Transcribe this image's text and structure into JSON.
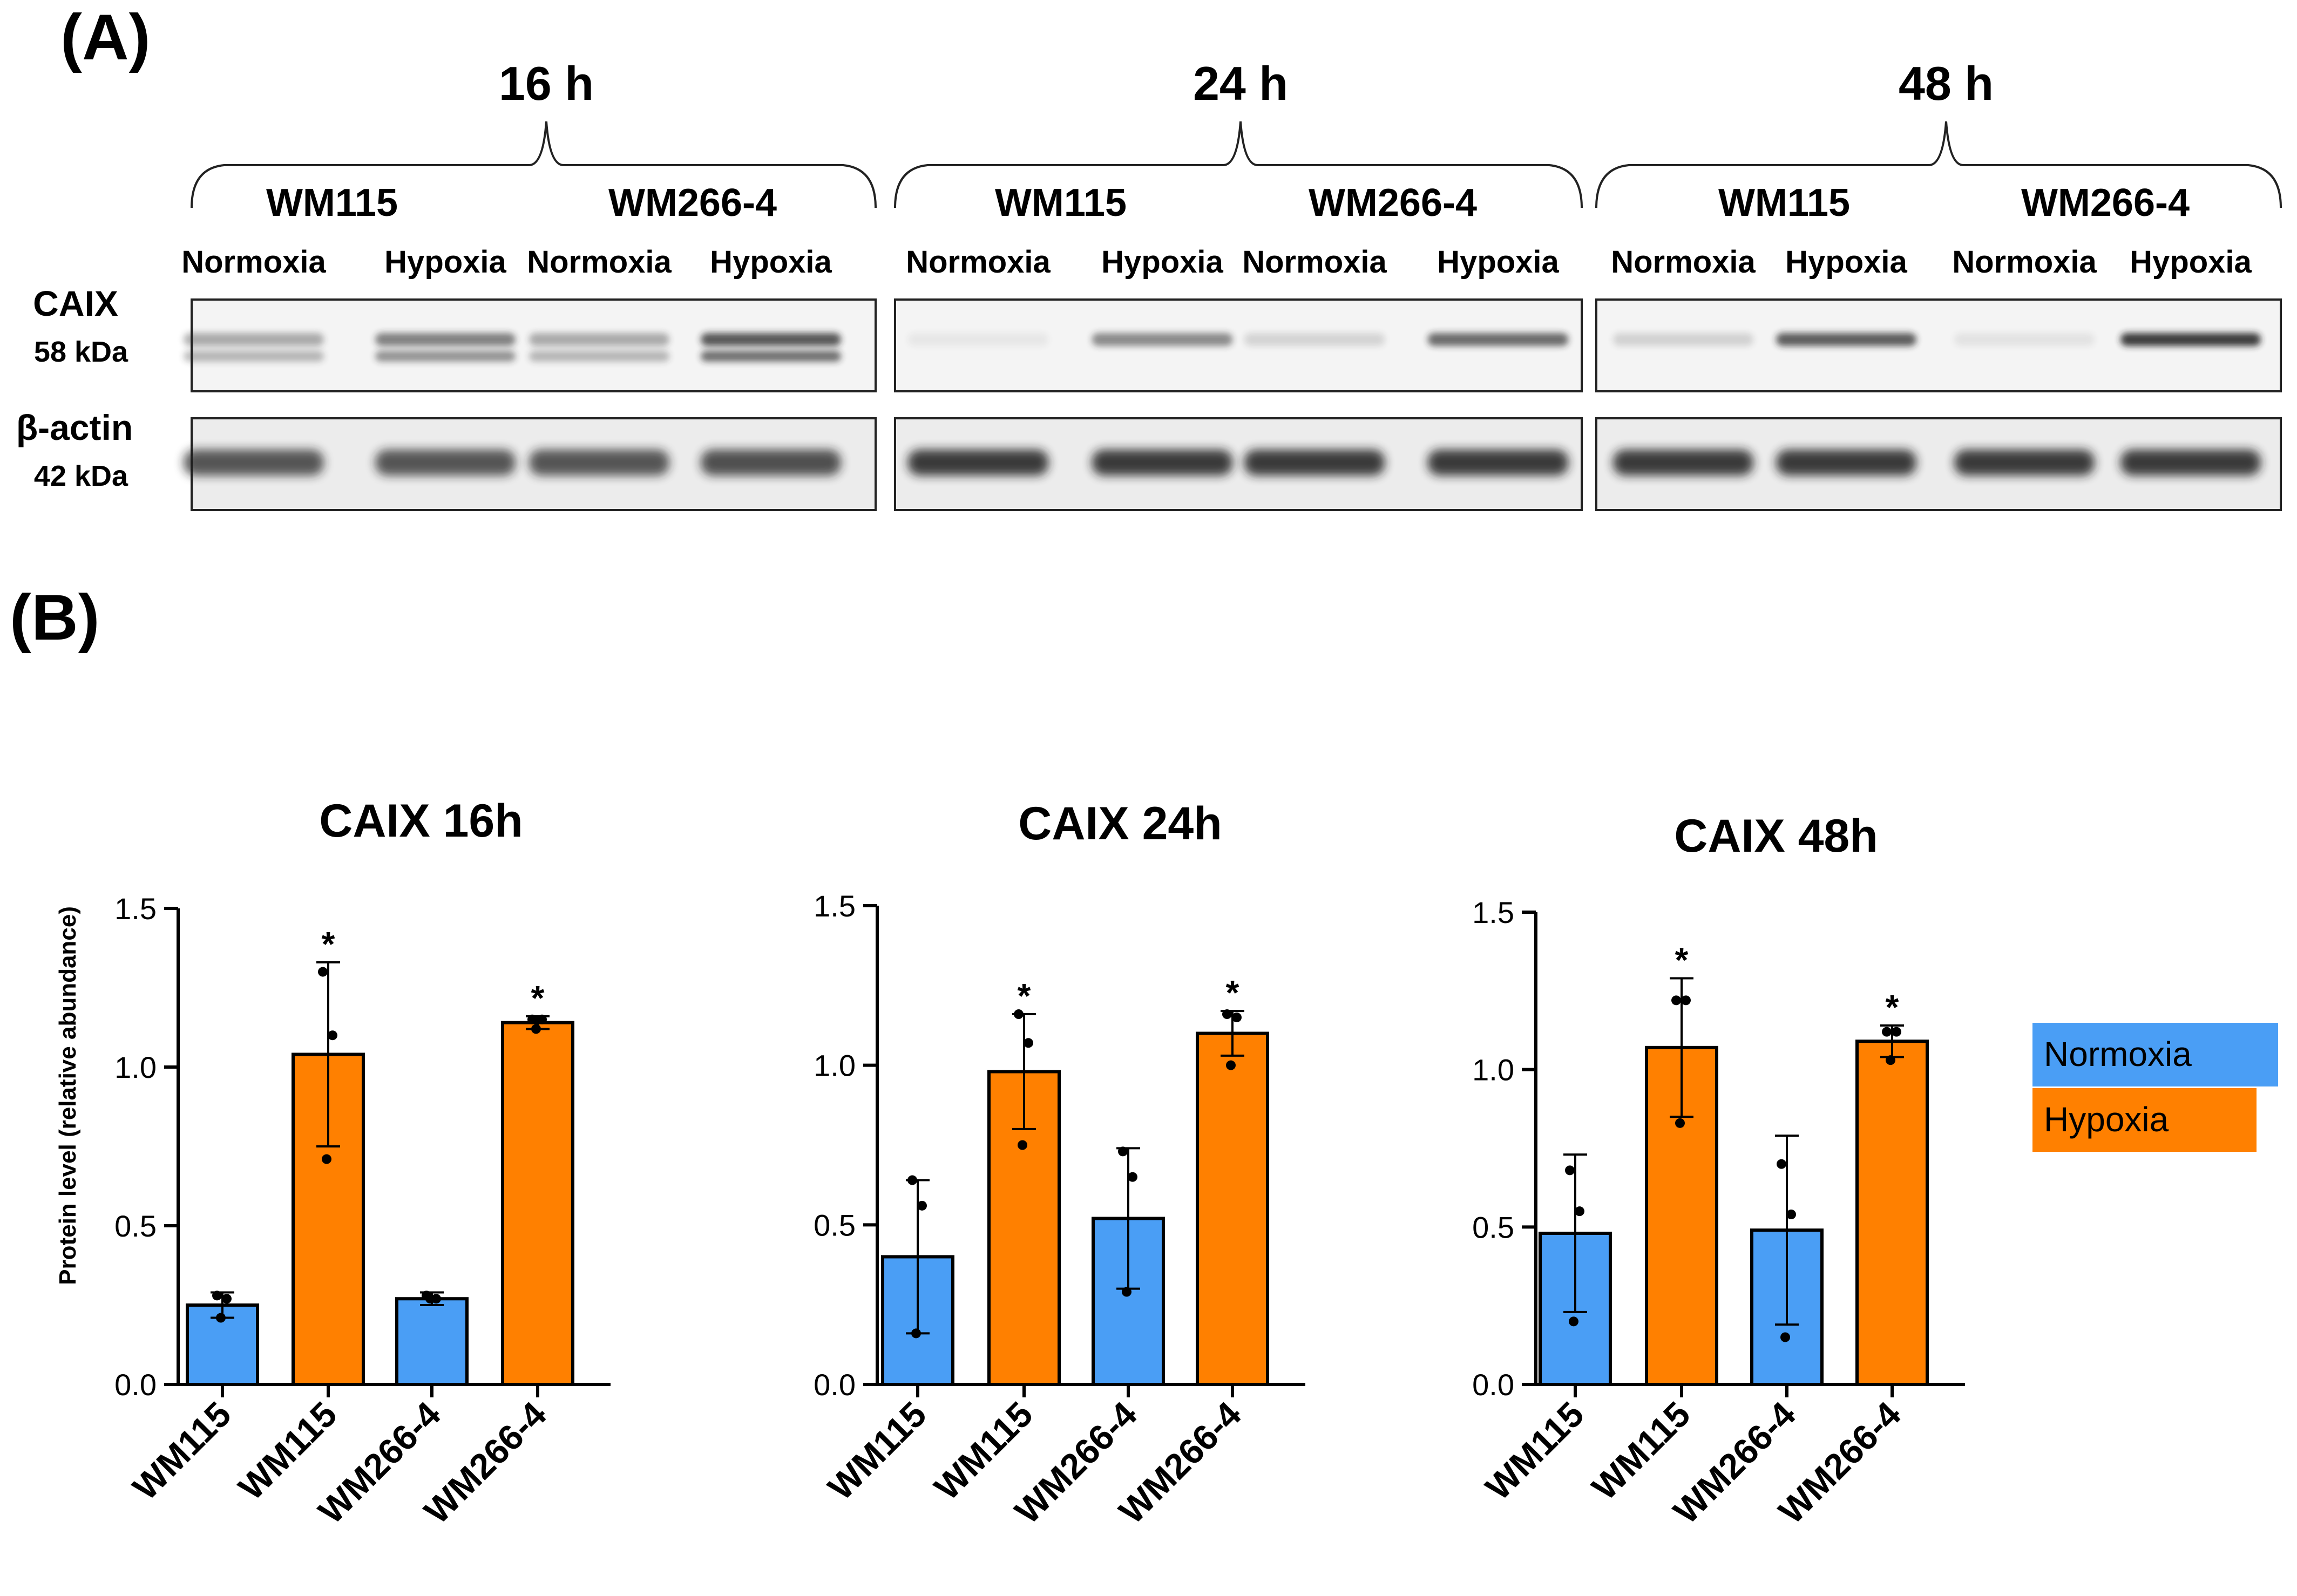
{
  "panel_a": {
    "label": "(A)",
    "groups": [
      {
        "time": "16 h",
        "cell_lines": [
          "WM115",
          "WM266-4"
        ],
        "conditions": [
          "Normoxia",
          "Hypoxia",
          "Normoxia",
          "Hypoxia"
        ]
      },
      {
        "time": "24 h",
        "cell_lines": [
          "WM115",
          "WM266-4"
        ],
        "conditions": [
          "Normoxia",
          "Hypoxia",
          "Normoxia",
          "Hypoxia"
        ]
      },
      {
        "time": "48 h",
        "cell_lines": [
          "WM115",
          "WM266-4"
        ],
        "conditions": [
          "Normoxia",
          "Hypoxia",
          "Normoxia",
          "Hypoxia"
        ]
      }
    ],
    "proteins": [
      {
        "name": "CAIX",
        "kda": "58 kDa"
      },
      {
        "name": "β-actin",
        "kda": "42 kDa"
      }
    ]
  },
  "panel_b": {
    "label": "(B)"
  },
  "chart_data": [
    {
      "type": "bar",
      "title": "CAIX 16h",
      "ylabel": "Protein level (relative abundance)",
      "ylim": [
        0,
        1.5
      ],
      "yticks": [
        "0.0",
        "0.5",
        "1.0",
        "1.5"
      ],
      "categories": [
        "WM115",
        "WM115",
        "WM266-4",
        "WM266-4"
      ],
      "conditions": [
        "Normoxia",
        "Hypoxia",
        "Normoxia",
        "Hypoxia"
      ],
      "values": [
        0.25,
        1.04,
        0.27,
        1.14
      ],
      "errors": [
        0.04,
        0.29,
        0.02,
        0.02
      ],
      "points": [
        [
          0.28,
          0.27,
          0.21
        ],
        [
          1.3,
          1.1,
          0.71
        ],
        [
          0.28,
          0.27,
          0.27
        ],
        [
          1.15,
          1.15,
          1.12
        ]
      ],
      "significance": [
        "",
        "*",
        "",
        "*"
      ]
    },
    {
      "type": "bar",
      "title": "CAIX 24h",
      "ylabel": "",
      "ylim": [
        0,
        1.5
      ],
      "yticks": [
        "0.0",
        "0.5",
        "1.0",
        "1.5"
      ],
      "categories": [
        "WM115",
        "WM115",
        "WM266-4",
        "WM266-4"
      ],
      "conditions": [
        "Normoxia",
        "Hypoxia",
        "Normoxia",
        "Hypoxia"
      ],
      "values": [
        0.4,
        0.98,
        0.52,
        1.1
      ],
      "errors": [
        0.24,
        0.18,
        0.22,
        0.07
      ],
      "points": [
        [
          0.64,
          0.56,
          0.16
        ],
        [
          1.16,
          1.07,
          0.75
        ],
        [
          0.73,
          0.65,
          0.29
        ],
        [
          1.16,
          1.15,
          1.0
        ]
      ],
      "significance": [
        "",
        "*",
        "",
        "*"
      ]
    },
    {
      "type": "bar",
      "title": "CAIX 48h",
      "ylabel": "",
      "ylim": [
        0,
        1.5
      ],
      "yticks": [
        "0.0",
        "0.5",
        "1.0",
        "1.5"
      ],
      "categories": [
        "WM115",
        "WM115",
        "WM266-4",
        "WM266-4"
      ],
      "conditions": [
        "Normoxia",
        "Hypoxia",
        "Normoxia",
        "Hypoxia"
      ],
      "values": [
        0.48,
        1.07,
        0.49,
        1.09
      ],
      "errors": [
        0.25,
        0.22,
        0.3,
        0.05
      ],
      "points": [
        [
          0.68,
          0.55,
          0.2
        ],
        [
          1.22,
          1.22,
          0.83
        ],
        [
          0.7,
          0.54,
          0.15
        ],
        [
          1.12,
          1.12,
          1.03
        ]
      ],
      "significance": [
        "",
        "*",
        "",
        "*"
      ]
    }
  ],
  "legend": [
    {
      "label": "Normoxia",
      "color": "#4A9EF5"
    },
    {
      "label": "Hypoxia",
      "color": "#FF8000"
    }
  ],
  "colors": {
    "Normoxia": "#4A9EF5",
    "Hypoxia": "#FF8000"
  }
}
